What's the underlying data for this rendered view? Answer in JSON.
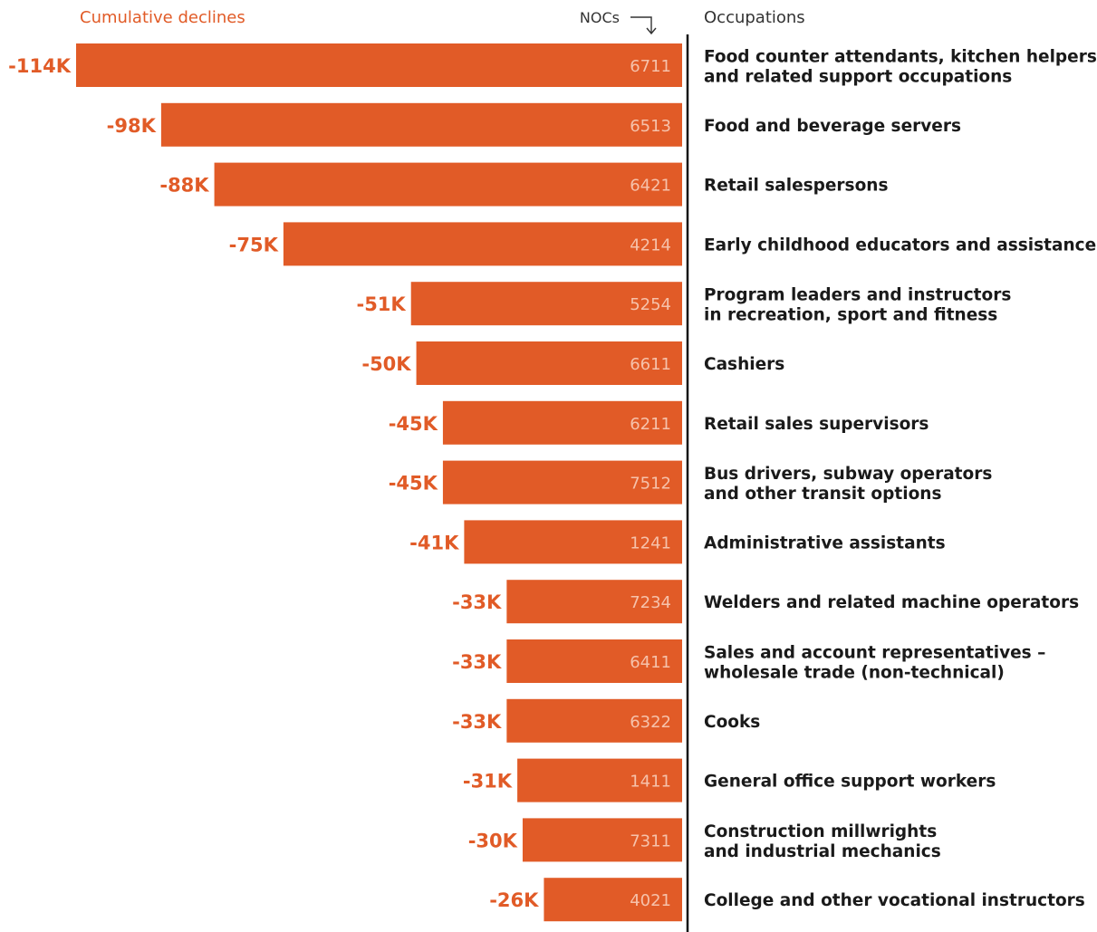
{
  "headers": {
    "left": "Cumulative declines",
    "noc": "NOCs",
    "occupations": "Occupations"
  },
  "colors": {
    "bar": "#e15b27",
    "value_label": "#e15b27",
    "noc_text": "#f6c2ab",
    "axis": "#111111"
  },
  "icons": {
    "noc_pointer": "down-arrow-icon"
  },
  "chart_data": {
    "type": "bar",
    "orientation": "horizontal",
    "title": "",
    "xlabel": "Cumulative declines",
    "ylabel": "Occupations",
    "xlim": [
      -114,
      0
    ],
    "grid": false,
    "legend": "none",
    "categories": [
      "Food counter attendants, kitchen helpers\nand related support occupations",
      "Food and beverage servers",
      "Retail salespersons",
      "Early childhood educators and assistance",
      "Program leaders and instructors\nin recreation, sport and fitness",
      "Cashiers",
      "Retail sales supervisors",
      "Bus drivers, subway operators\nand other transit options",
      "Administrative assistants",
      "Welders and related machine operators",
      "Sales and account representatives –\nwholesale trade (non-technical)",
      "Cooks",
      "General office support workers",
      "Construction millwrights\nand industrial mechanics",
      "College and other vocational instructors"
    ],
    "values": [
      -114,
      -98,
      -88,
      -75,
      -51,
      -50,
      -45,
      -45,
      -41,
      -33,
      -33,
      -33,
      -31,
      -30,
      -26
    ],
    "value_labels": [
      "-114K",
      "-98K",
      "-88K",
      "-75K",
      "-51K",
      "-50K",
      "-45K",
      "-45K",
      "-41K",
      "-33K",
      "-33K",
      "-33K",
      "-31K",
      "-30K",
      "-26K"
    ],
    "nocs": [
      "6711",
      "6513",
      "6421",
      "4214",
      "5254",
      "6611",
      "6211",
      "7512",
      "1241",
      "7234",
      "6411",
      "6322",
      "1411",
      "7311",
      "4021"
    ]
  }
}
